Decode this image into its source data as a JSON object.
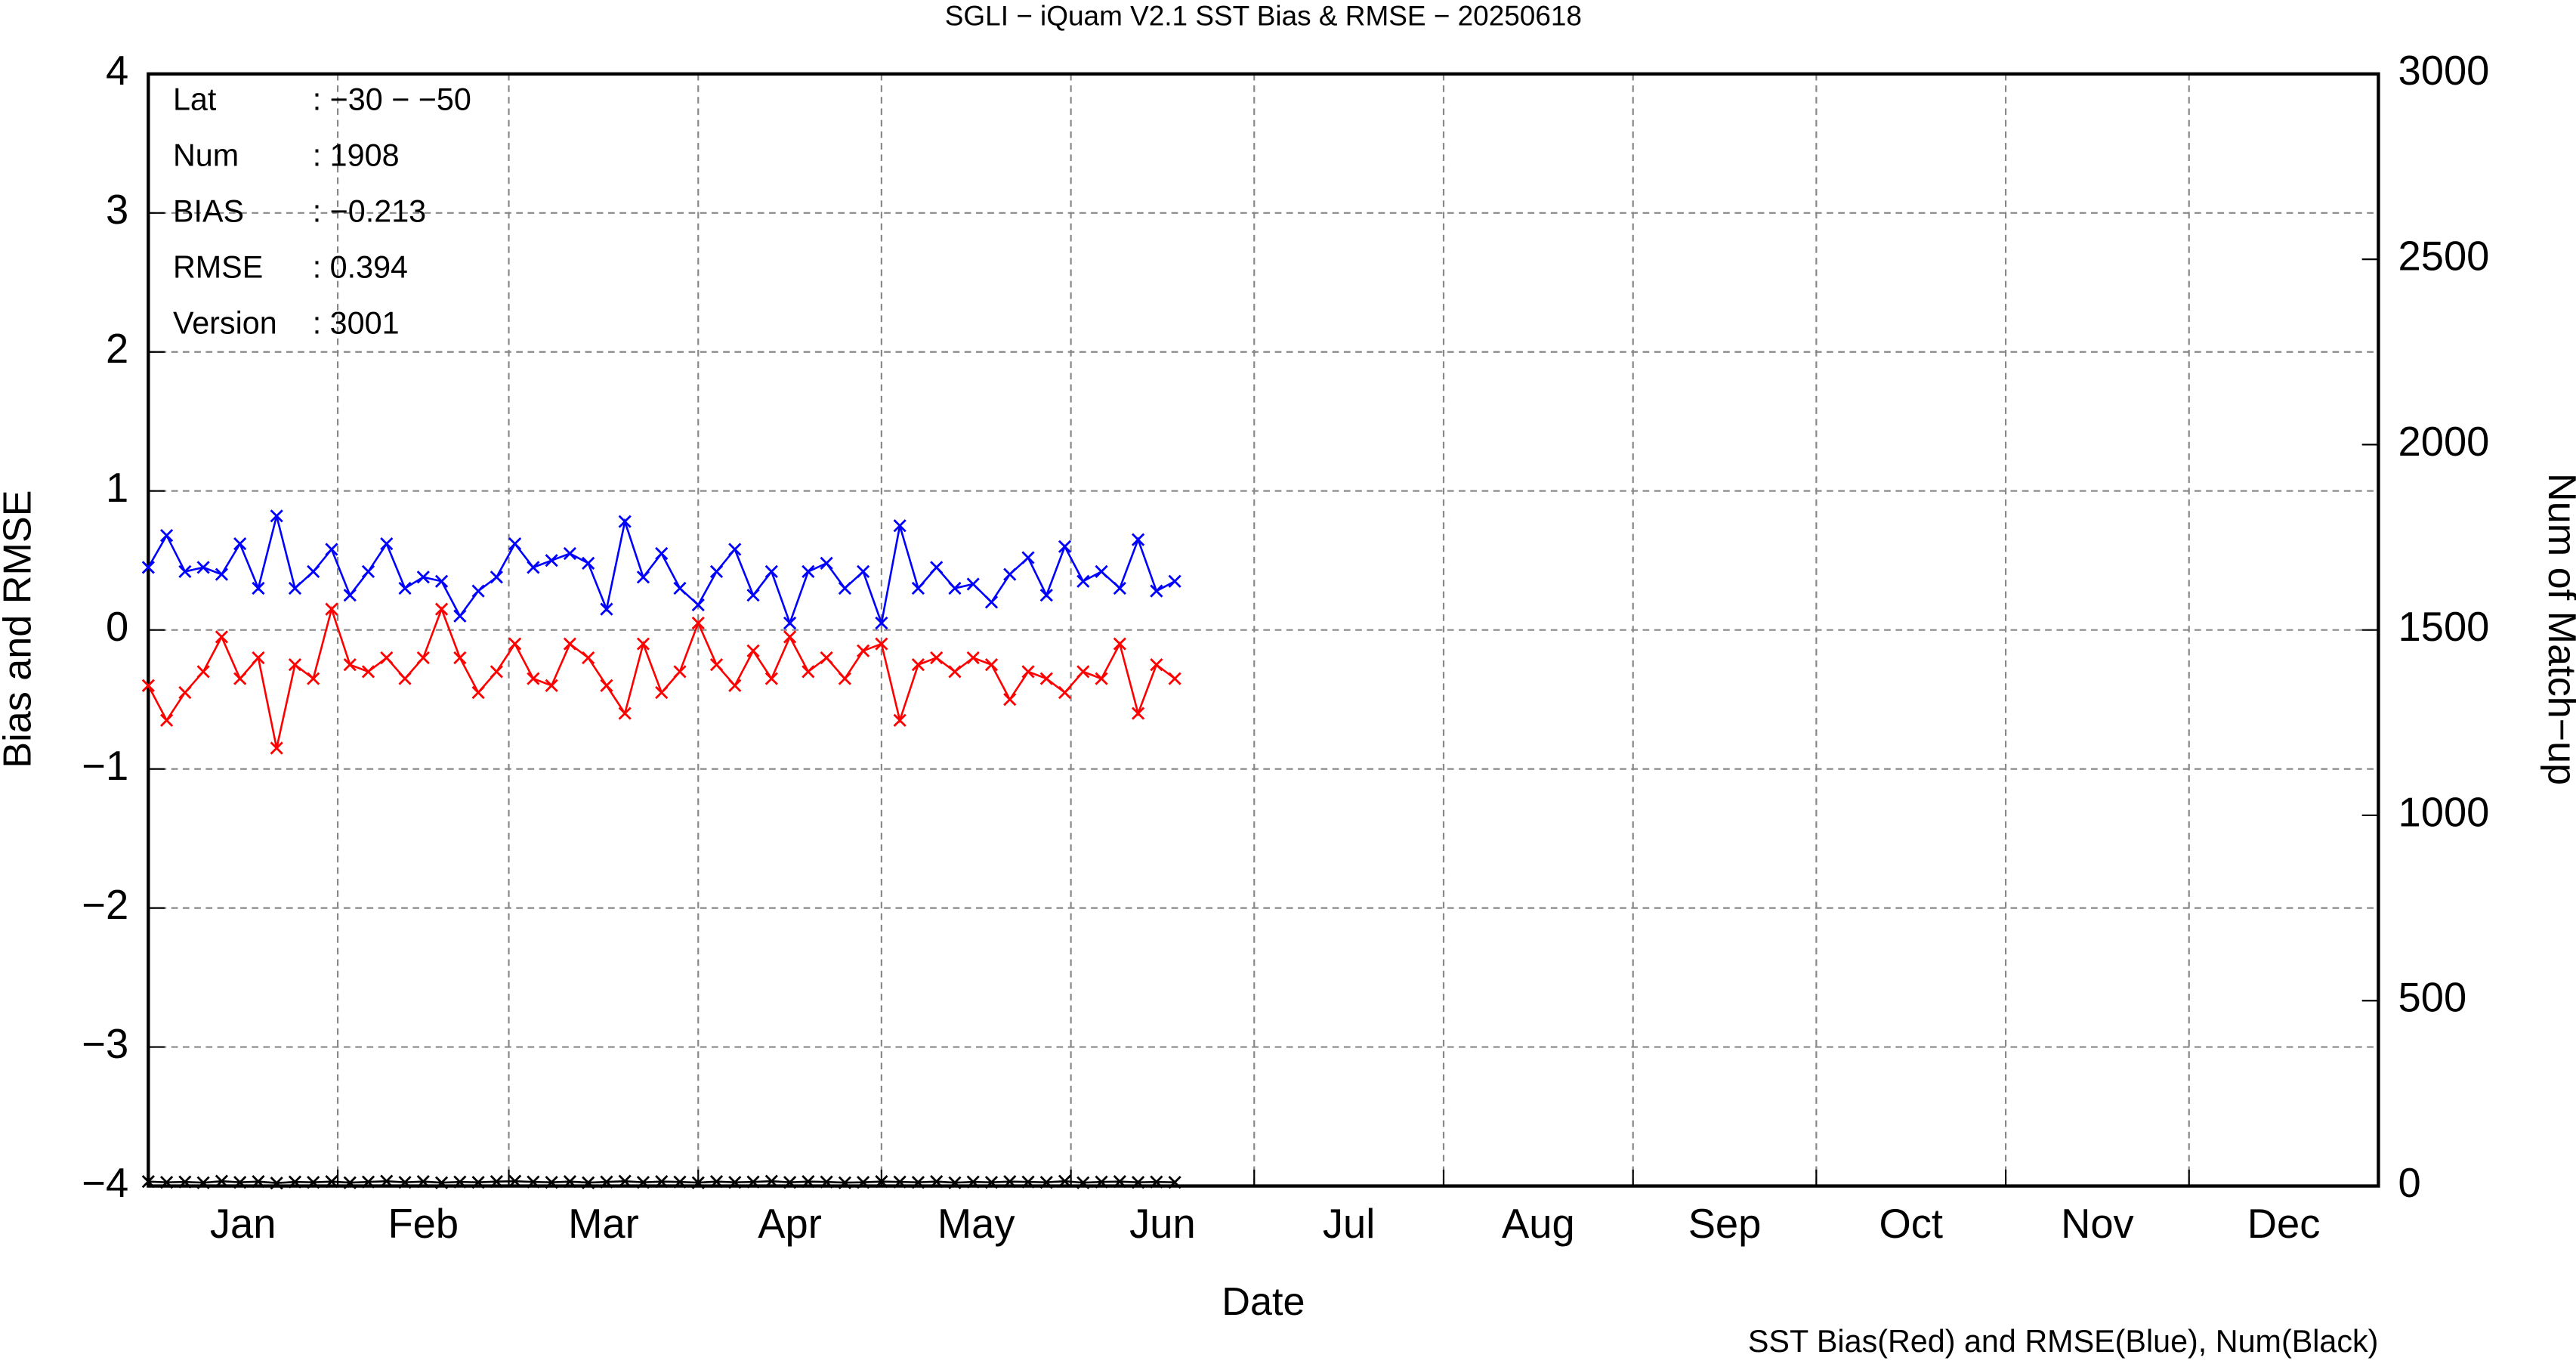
{
  "chart_data": {
    "type": "line",
    "title": "SGLI − iQuam V2.1 SST Bias & RMSE  − 20250618",
    "x_label": "Date",
    "y_label": "Bias and RMSE",
    "y2_label": "Num of Match−up",
    "footnote": "SST Bias(Red) and RMSE(Blue), Num(Black)",
    "info_box": [
      {
        "label": "Lat",
        "value": ": −30 − −50"
      },
      {
        "label": "Num",
        "value": ": 1908"
      },
      {
        "label": "BIAS",
        "value": ": −0.213"
      },
      {
        "label": "RMSE",
        "value": ": 0.394"
      },
      {
        "label": "Version",
        "value": ": 3001"
      }
    ],
    "x": [
      0,
      3,
      6,
      9,
      12,
      15,
      18,
      21,
      24,
      27,
      30,
      33,
      36,
      39,
      42,
      45,
      48,
      51,
      54,
      57,
      60,
      63,
      66,
      69,
      72,
      75,
      78,
      81,
      84,
      87,
      90,
      93,
      96,
      99,
      102,
      105,
      108,
      111,
      114,
      117,
      120,
      123,
      126,
      129,
      132,
      135,
      138,
      141,
      144,
      147,
      150,
      153,
      156,
      159,
      162,
      165,
      168
    ],
    "xlim": [
      0,
      365
    ],
    "xticks": [
      {
        "value": 15.5,
        "label": "Jan"
      },
      {
        "value": 45,
        "label": "Feb"
      },
      {
        "value": 74.5,
        "label": "Mar"
      },
      {
        "value": 105,
        "label": "Apr"
      },
      {
        "value": 135.5,
        "label": "May"
      },
      {
        "value": 166,
        "label": "Jun"
      },
      {
        "value": 196.5,
        "label": "Jul"
      },
      {
        "value": 227.5,
        "label": "Aug"
      },
      {
        "value": 258,
        "label": "Sep"
      },
      {
        "value": 288.5,
        "label": "Oct"
      },
      {
        "value": 319,
        "label": "Nov"
      },
      {
        "value": 349.5,
        "label": "Dec"
      }
    ],
    "xgrid": [
      31,
      59,
      90,
      120,
      151,
      181,
      212,
      243,
      273,
      304,
      334
    ],
    "ylim": [
      -4,
      4
    ],
    "yticks": [
      {
        "value": -4,
        "label": "−4"
      },
      {
        "value": -3,
        "label": "−3"
      },
      {
        "value": -2,
        "label": "−2"
      },
      {
        "value": -1,
        "label": "−1"
      },
      0,
      1,
      2,
      3,
      4
    ],
    "y2lim": [
      0,
      3000
    ],
    "y2ticks": [
      0,
      500,
      1000,
      1500,
      2000,
      2500,
      3000
    ],
    "grid": true,
    "series": [
      {
        "color": "#ff0000",
        "values": [
          -0.4,
          -0.65,
          -0.45,
          -0.3,
          -0.05,
          -0.35,
          -0.2,
          -0.85,
          -0.25,
          -0.35,
          0.15,
          -0.25,
          -0.3,
          -0.2,
          -0.35,
          -0.2,
          0.15,
          -0.2,
          -0.45,
          -0.3,
          -0.1,
          -0.35,
          -0.4,
          -0.1,
          -0.2,
          -0.4,
          -0.6,
          -0.1,
          -0.45,
          -0.3,
          0.05,
          -0.25,
          -0.4,
          -0.15,
          -0.35,
          -0.05,
          -0.3,
          -0.2,
          -0.35,
          -0.15,
          -0.1,
          -0.65,
          -0.25,
          -0.2,
          -0.3,
          -0.2,
          -0.25,
          -0.5,
          -0.3,
          -0.35,
          -0.45,
          -0.3,
          -0.35,
          -0.1,
          -0.6,
          -0.25,
          -0.35
        ]
      },
      {
        "color": "#0000ff",
        "values": [
          0.45,
          0.68,
          0.42,
          0.45,
          0.4,
          0.62,
          0.3,
          0.82,
          0.3,
          0.42,
          0.58,
          0.25,
          0.42,
          0.62,
          0.3,
          0.38,
          0.35,
          0.1,
          0.28,
          0.38,
          0.62,
          0.45,
          0.5,
          0.55,
          0.48,
          0.15,
          0.78,
          0.38,
          0.55,
          0.3,
          0.18,
          0.42,
          0.58,
          0.25,
          0.42,
          0.05,
          0.42,
          0.48,
          0.3,
          0.42,
          0.05,
          0.75,
          0.3,
          0.45,
          0.3,
          0.33,
          0.2,
          0.4,
          0.52,
          0.25,
          0.6,
          0.35,
          0.42,
          0.3,
          0.65,
          0.28,
          0.35
        ]
      },
      {
        "color": "#000000",
        "axis": "y2",
        "values": [
          12,
          10,
          11,
          9,
          13,
          10,
          12,
          8,
          11,
          10,
          12,
          9,
          11,
          13,
          10,
          12,
          9,
          11,
          10,
          12,
          13,
          11,
          10,
          12,
          9,
          11,
          13,
          10,
          12,
          11,
          9,
          12,
          10,
          11,
          13,
          10,
          12,
          11,
          9,
          10,
          12,
          11,
          10,
          12,
          9,
          11,
          10,
          12,
          11,
          10,
          13,
          9,
          11,
          12,
          10,
          11,
          10
        ]
      }
    ]
  }
}
